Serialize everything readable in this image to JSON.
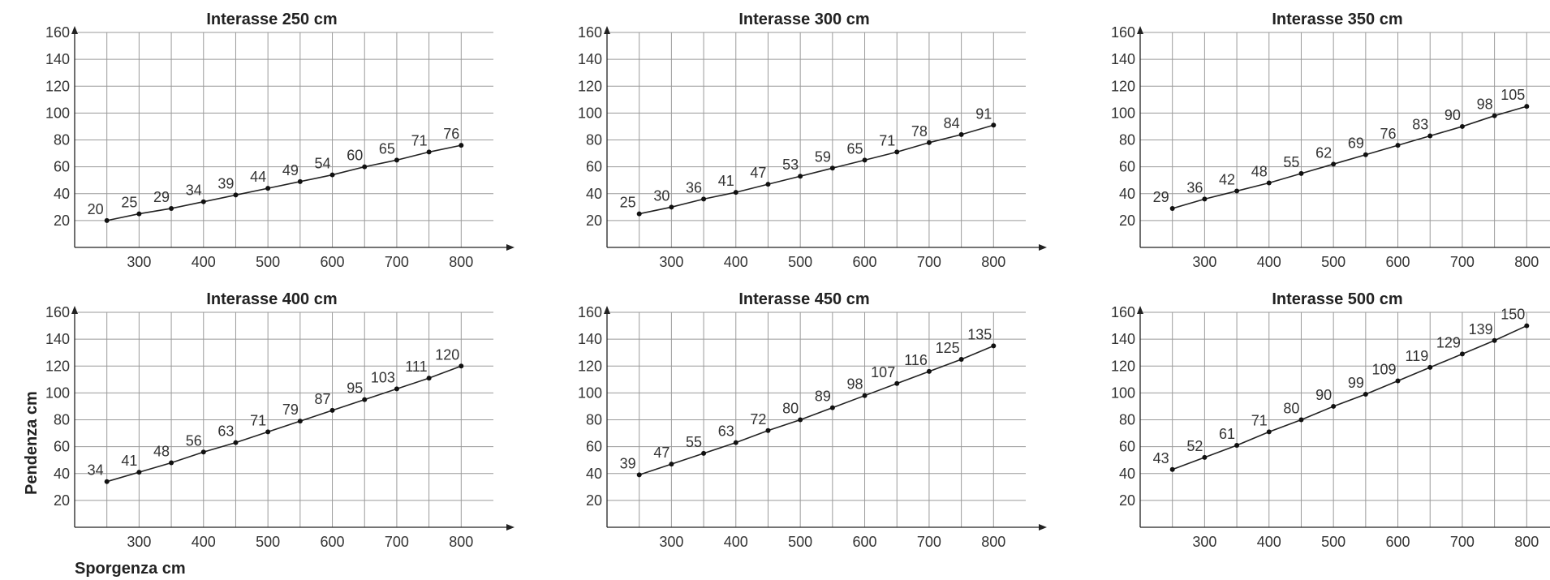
{
  "shared": {
    "ylabel": "Pendenza cm",
    "xlabel": "Sporgenza cm"
  },
  "chart_data": [
    {
      "type": "line",
      "title": "Interasse 250 cm",
      "xlabel": "Sporgenza cm",
      "ylabel": "Pendenza cm",
      "x": [
        250,
        300,
        350,
        400,
        450,
        500,
        550,
        600,
        650,
        700,
        750,
        800
      ],
      "y": [
        20,
        25,
        29,
        34,
        39,
        44,
        49,
        54,
        60,
        65,
        71,
        76
      ],
      "data_labels": [
        "20",
        "25",
        "29",
        "34",
        "39",
        "44",
        "49",
        "54",
        "60",
        "65",
        "71",
        "76"
      ],
      "x_ticks": [
        "300",
        "400",
        "500",
        "600",
        "700",
        "800"
      ],
      "y_ticks": [
        "20",
        "40",
        "60",
        "80",
        "100",
        "120",
        "140",
        "160"
      ],
      "xlim": [
        200,
        850
      ],
      "ylim": [
        0,
        160
      ],
      "grid": true
    },
    {
      "type": "line",
      "title": "Interasse 300 cm",
      "xlabel": "",
      "ylabel": "",
      "x": [
        250,
        300,
        350,
        400,
        450,
        500,
        550,
        600,
        650,
        700,
        750,
        800
      ],
      "y": [
        25,
        30,
        36,
        41,
        47,
        53,
        59,
        65,
        71,
        78,
        84,
        91
      ],
      "data_labels": [
        "25",
        "30",
        "36",
        "41",
        "47",
        "53",
        "59",
        "65",
        "71",
        "78",
        "84",
        "91"
      ],
      "x_ticks": [
        "300",
        "400",
        "500",
        "600",
        "700",
        "800"
      ],
      "y_ticks": [
        "20",
        "40",
        "60",
        "80",
        "100",
        "120",
        "140",
        "160"
      ],
      "xlim": [
        200,
        850
      ],
      "ylim": [
        0,
        160
      ],
      "grid": true
    },
    {
      "type": "line",
      "title": "Interasse 350 cm",
      "xlabel": "",
      "ylabel": "",
      "x": [
        250,
        300,
        350,
        400,
        450,
        500,
        550,
        600,
        650,
        700,
        750,
        800
      ],
      "y": [
        29,
        36,
        42,
        48,
        55,
        62,
        69,
        76,
        83,
        90,
        98,
        105
      ],
      "data_labels": [
        "29",
        "36",
        "42",
        "48",
        "55",
        "62",
        "69",
        "76",
        "83",
        "90",
        "98",
        "105"
      ],
      "x_ticks": [
        "300",
        "400",
        "500",
        "600",
        "700",
        "800"
      ],
      "y_ticks": [
        "20",
        "40",
        "60",
        "80",
        "100",
        "120",
        "140",
        "160"
      ],
      "xlim": [
        200,
        850
      ],
      "ylim": [
        0,
        160
      ],
      "grid": true
    },
    {
      "type": "line",
      "title": "Interasse 400 cm",
      "xlabel": "",
      "ylabel": "",
      "x": [
        250,
        300,
        350,
        400,
        450,
        500,
        550,
        600,
        650,
        700,
        750,
        800
      ],
      "y": [
        34,
        41,
        48,
        56,
        63,
        71,
        79,
        87,
        95,
        103,
        111,
        120
      ],
      "data_labels": [
        "34",
        "41",
        "48",
        "56",
        "63",
        "71",
        "79",
        "87",
        "95",
        "103",
        "111",
        "120"
      ],
      "x_ticks": [
        "300",
        "400",
        "500",
        "600",
        "700",
        "800"
      ],
      "y_ticks": [
        "20",
        "40",
        "60",
        "80",
        "100",
        "120",
        "140",
        "160"
      ],
      "xlim": [
        200,
        850
      ],
      "ylim": [
        0,
        160
      ],
      "grid": true
    },
    {
      "type": "line",
      "title": "Interasse 450 cm",
      "xlabel": "",
      "ylabel": "",
      "x": [
        250,
        300,
        350,
        400,
        450,
        500,
        550,
        600,
        650,
        700,
        750,
        800
      ],
      "y": [
        39,
        47,
        55,
        63,
        72,
        80,
        89,
        98,
        107,
        116,
        125,
        135
      ],
      "data_labels": [
        "39",
        "47",
        "55",
        "63",
        "72",
        "80",
        "89",
        "98",
        "107",
        "116",
        "125",
        "135"
      ],
      "x_ticks": [
        "300",
        "400",
        "500",
        "600",
        "700",
        "800"
      ],
      "y_ticks": [
        "20",
        "40",
        "60",
        "80",
        "100",
        "120",
        "140",
        "160"
      ],
      "xlim": [
        200,
        850
      ],
      "ylim": [
        0,
        160
      ],
      "grid": true
    },
    {
      "type": "line",
      "title": "Interasse 500 cm",
      "xlabel": "",
      "ylabel": "",
      "x": [
        250,
        300,
        350,
        400,
        450,
        500,
        550,
        600,
        650,
        700,
        750,
        800
      ],
      "y": [
        43,
        52,
        61,
        71,
        80,
        90,
        99,
        109,
        119,
        129,
        139,
        150
      ],
      "data_labels": [
        "43",
        "52",
        "61",
        "71",
        "80",
        "90",
        "99",
        "109",
        "119",
        "129",
        "139",
        "150"
      ],
      "x_ticks": [
        "300",
        "400",
        "500",
        "600",
        "700",
        "800"
      ],
      "y_ticks": [
        "20",
        "40",
        "60",
        "80",
        "100",
        "120",
        "140",
        "160"
      ],
      "xlim": [
        200,
        850
      ],
      "ylim": [
        0,
        160
      ],
      "grid": true
    }
  ]
}
